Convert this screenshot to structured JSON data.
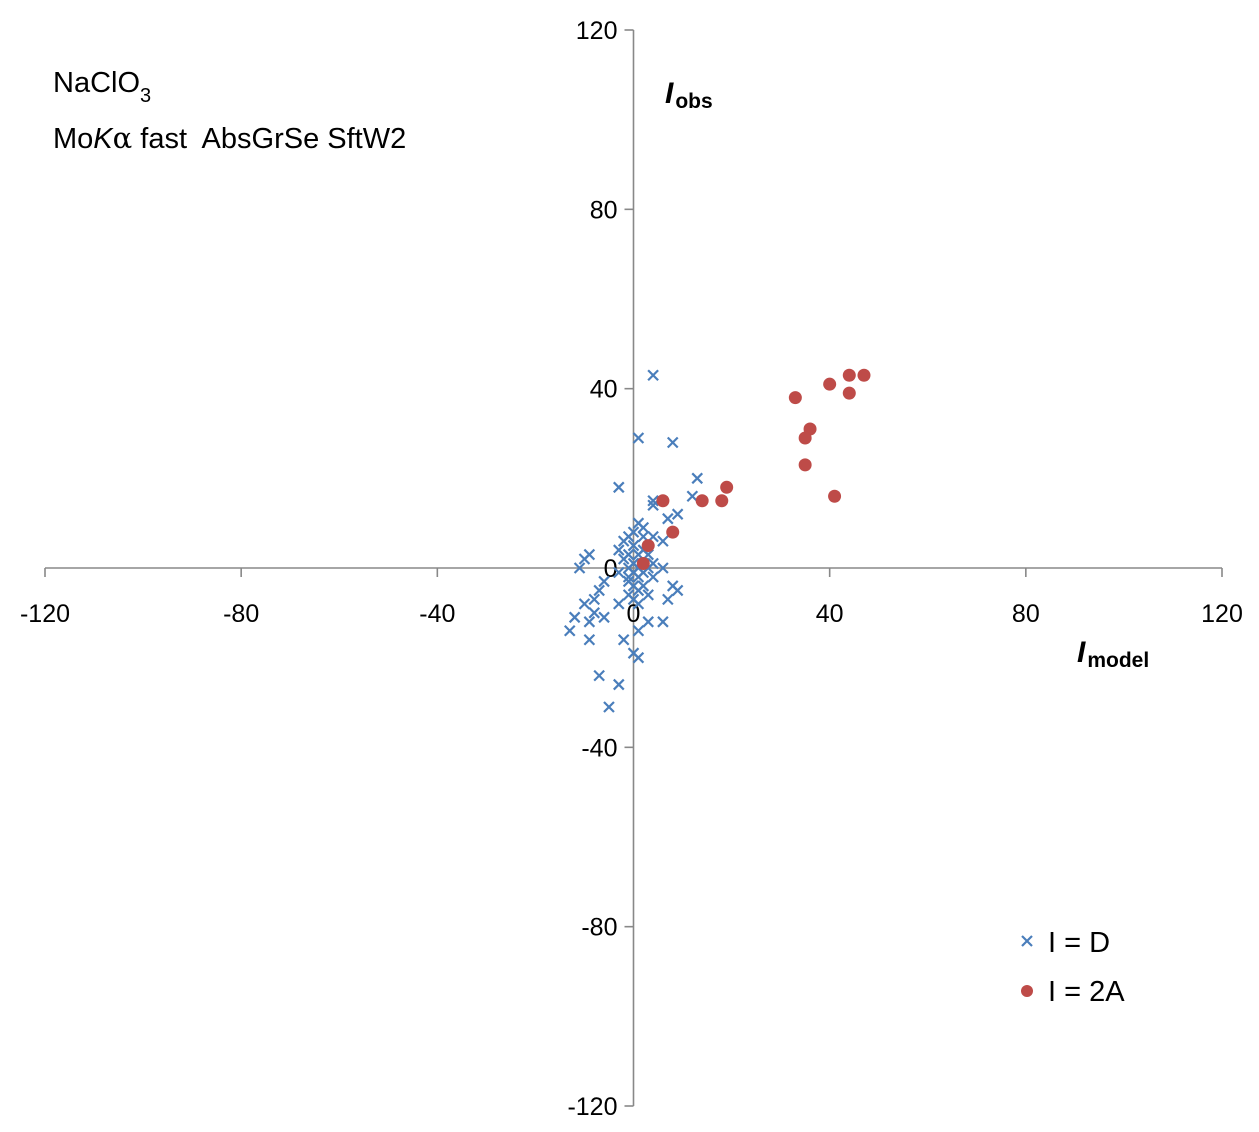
{
  "chart_data": {
    "type": "scatter",
    "title_line1_main": "NaClO",
    "title_line1_sub": "3",
    "title_line2_pre": "Mo",
    "title_line2_italic": "K",
    "title_line2_greek": "α",
    "title_line2_post": " fast  AbsGrSe SftW2",
    "xlabel_main": "I",
    "xlabel_sub": "model",
    "ylabel_main": "I",
    "ylabel_sub": "obs",
    "xlim": [
      -120,
      120
    ],
    "ylim": [
      -120,
      120
    ],
    "xticks": [
      -120,
      -80,
      -40,
      0,
      40,
      80,
      120
    ],
    "yticks": [
      120,
      80,
      40,
      0,
      -40,
      -80,
      -120
    ],
    "xtick_labels": [
      "-120",
      "-80",
      "-40",
      "0",
      "40",
      "80",
      "120"
    ],
    "ytick_labels": [
      "120",
      "80",
      "40",
      "0",
      "-40",
      "-80",
      "-120"
    ],
    "grid": false,
    "legend_position": "bottom-right",
    "series": [
      {
        "name": "I = D",
        "marker": "x",
        "color": "#4a7ebb",
        "points": [
          [
            4,
            43
          ],
          [
            1,
            29
          ],
          [
            8,
            28
          ],
          [
            -3,
            18
          ],
          [
            13,
            20
          ],
          [
            12,
            16
          ],
          [
            4,
            15
          ],
          [
            4,
            14
          ],
          [
            9,
            12
          ],
          [
            7,
            11
          ],
          [
            1,
            10
          ],
          [
            2,
            9
          ],
          [
            0,
            8
          ],
          [
            -1,
            7
          ],
          [
            2,
            7
          ],
          [
            4,
            7
          ],
          [
            6,
            6
          ],
          [
            -2,
            6
          ],
          [
            0,
            5
          ],
          [
            2,
            4
          ],
          [
            -3,
            4
          ],
          [
            -1,
            3
          ],
          [
            1,
            3
          ],
          [
            3,
            3
          ],
          [
            -9,
            3
          ],
          [
            -10,
            2
          ],
          [
            -2,
            2
          ],
          [
            0,
            1
          ],
          [
            2,
            1
          ],
          [
            4,
            1
          ],
          [
            -11,
            0
          ],
          [
            -1,
            0
          ],
          [
            1,
            0
          ],
          [
            3,
            0
          ],
          [
            6,
            0
          ],
          [
            -3,
            -1
          ],
          [
            0,
            -1
          ],
          [
            2,
            -1
          ],
          [
            -1,
            -2
          ],
          [
            1,
            -2
          ],
          [
            4,
            -2
          ],
          [
            -6,
            -3
          ],
          [
            -1,
            -3
          ],
          [
            0,
            -4
          ],
          [
            2,
            -4
          ],
          [
            8,
            -4
          ],
          [
            9,
            -5
          ],
          [
            -7,
            -5
          ],
          [
            1,
            -5
          ],
          [
            -1,
            -6
          ],
          [
            3,
            -6
          ],
          [
            0,
            -7
          ],
          [
            -8,
            -7
          ],
          [
            7,
            -7
          ],
          [
            -10,
            -8
          ],
          [
            -3,
            -8
          ],
          [
            1,
            -8
          ],
          [
            -8,
            -10
          ],
          [
            -6,
            -11
          ],
          [
            -12,
            -11
          ],
          [
            3,
            -12
          ],
          [
            6,
            -12
          ],
          [
            -9,
            -12
          ],
          [
            1,
            -14
          ],
          [
            -13,
            -14
          ],
          [
            -2,
            -16
          ],
          [
            -9,
            -16
          ],
          [
            0,
            -19
          ],
          [
            1,
            -20
          ],
          [
            -7,
            -24
          ],
          [
            -3,
            -26
          ],
          [
            -5,
            -31
          ]
        ]
      },
      {
        "name": "I = 2A",
        "marker": "circle",
        "color": "#be4b48",
        "points": [
          [
            47,
            43
          ],
          [
            44,
            43
          ],
          [
            40,
            41
          ],
          [
            33,
            38
          ],
          [
            44,
            39
          ],
          [
            36,
            31
          ],
          [
            35,
            29
          ],
          [
            35,
            23
          ],
          [
            41,
            16
          ],
          [
            19,
            18
          ],
          [
            18,
            15
          ],
          [
            14,
            15
          ],
          [
            6,
            15
          ],
          [
            8,
            8
          ],
          [
            3,
            5
          ],
          [
            2,
            1
          ]
        ]
      }
    ]
  }
}
